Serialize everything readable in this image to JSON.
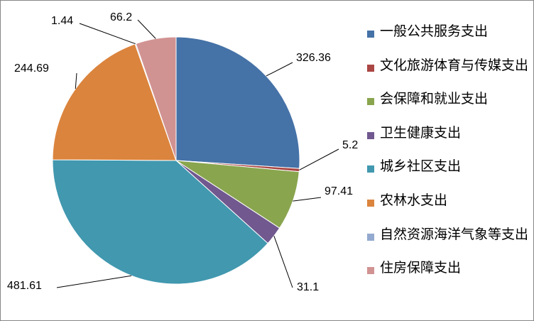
{
  "chart_data": {
    "type": "pie",
    "categories": [
      "一般公共服务支出",
      "文化旅游体育与传媒支出",
      "会保障和就业支出",
      "卫生健康支出",
      "城乡社区支出",
      "农林水支出",
      "自然资源海洋气象等支出",
      "住房保障支出"
    ],
    "values": [
      326.36,
      5.2,
      97.41,
      31.1,
      481.61,
      244.69,
      1.44,
      66.2
    ],
    "colors": [
      "#4572a7",
      "#aa4643",
      "#89a54e",
      "#71588f",
      "#4198af",
      "#db843d",
      "#93a9cf",
      "#d19392"
    ],
    "legend": "right"
  }
}
